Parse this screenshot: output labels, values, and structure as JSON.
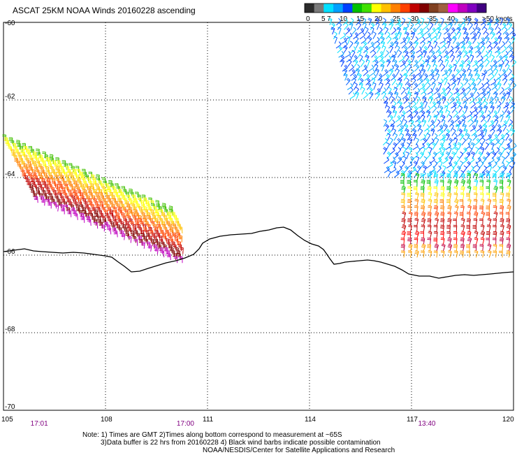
{
  "title": "ASCAT 25KM NOAA Winds 20160228 ascending",
  "legend": {
    "colors": [
      "#2b2b2b",
      "#7a7a7a",
      "#00e0ff",
      "#00a0ff",
      "#0040ff",
      "#00c000",
      "#40e000",
      "#ffff00",
      "#ffc000",
      "#ff8000",
      "#ff4000",
      "#c00000",
      "#800000",
      "#804020",
      "#a06040",
      "#ff00ff",
      "#c000c0",
      "#8000c0",
      "#400080"
    ],
    "ticks": [
      "0",
      "5",
      "7",
      "10",
      "15",
      "20",
      "25",
      "30",
      "35",
      "40",
      "45",
      ">50 knots"
    ]
  },
  "axes": {
    "lon_ticks": [
      "105",
      "108",
      "111",
      "114",
      "117",
      "120"
    ],
    "lat_ticks": [
      "-60",
      "-62",
      "-64",
      "-66",
      "-68",
      "-70"
    ],
    "lon_range": [
      105,
      120
    ],
    "lat_range": [
      -60,
      -70
    ]
  },
  "pass_times": [
    {
      "lon": 106,
      "label": "17:01"
    },
    {
      "lon": 110.3,
      "label": "17:00"
    },
    {
      "lon": 117.4,
      "label": "13:40"
    }
  ],
  "notes": [
    "Note: 1) Times are GMT 2)Times along bottom correspond to measurement at ~65S",
    "3)Data buffer is 22 hrs from 20160228 4) Black wind barbs indicate possible contamination",
    "NOAA/NESDIS/Center for Satellite Applications and Research"
  ]
}
